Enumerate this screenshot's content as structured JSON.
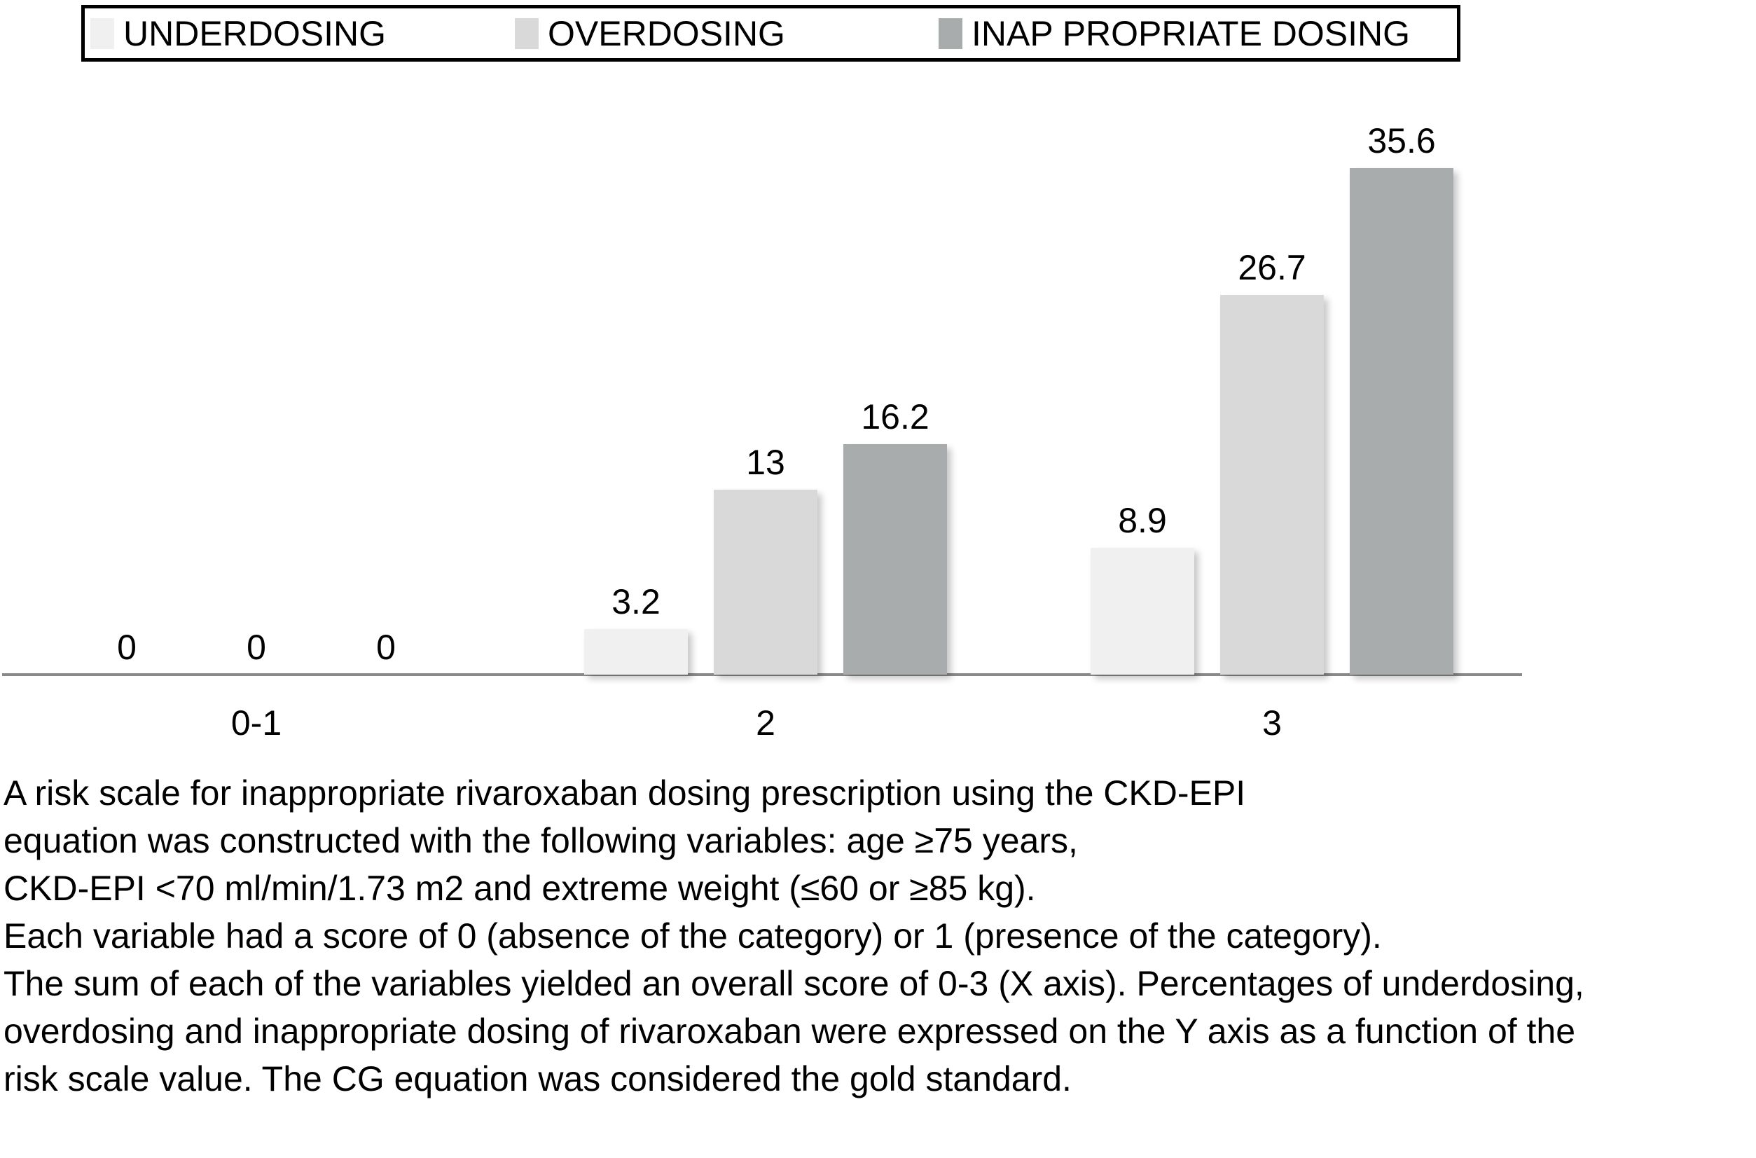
{
  "chart_data": {
    "type": "bar",
    "title": "",
    "xlabel": "",
    "ylabel": "",
    "categories": [
      "0-1",
      "2",
      "3"
    ],
    "series": [
      {
        "name": "UNDERDOSING",
        "color": "#f0f0f0",
        "values": [
          0,
          3.2,
          8.9
        ],
        "labels": [
          "0",
          "3.2",
          "8.9"
        ]
      },
      {
        "name": "OVERDOSING",
        "color": "#d9d9d9",
        "values": [
          0,
          13,
          26.7
        ],
        "labels": [
          "0",
          "13",
          "26.7"
        ]
      },
      {
        "name": "INAP PROPRIATE DOSING",
        "color": "#a9acad",
        "values": [
          0,
          16.2,
          35.6
        ],
        "labels": [
          "0",
          "16.2",
          "35.6"
        ]
      }
    ],
    "ylim": [
      0,
      36
    ],
    "grid": false,
    "legend_position": "top",
    "axis_color": "#8a8a8a",
    "background_color": "#ffffff",
    "data_label_color": "#000000"
  },
  "caption": {
    "lines": [
      "A risk scale for inappropriate rivaroxaban dosing prescription using the CKD-EPI",
      "equation was constructed with the following variables: age ≥75 years,",
      "CKD-EPI <70 ml/min/1.73 m2 and extreme weight (≤60 or ≥85 kg).",
      "Each variable had a score of 0 (absence of the category) or 1 (presence of the category).",
      "The sum of each of the variables yielded an overall score of 0-3 (X axis). Percentages of underdosing,",
      "overdosing and inappropriate dosing of rivaroxaban were expressed on the Y axis as a function of the",
      "risk scale value. The CG equation was considered the gold standard."
    ]
  }
}
